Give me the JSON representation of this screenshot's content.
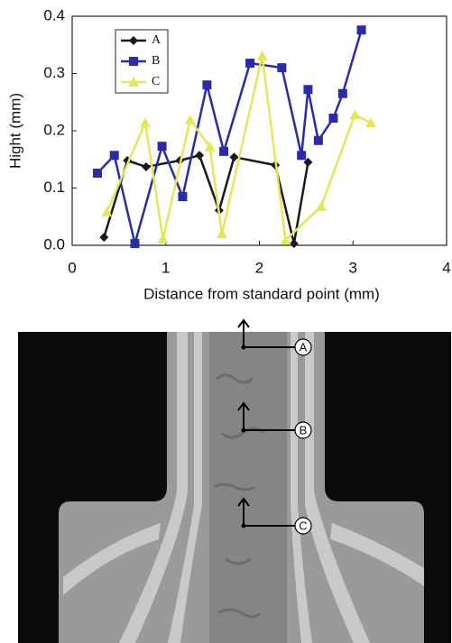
{
  "chart_data": {
    "type": "line",
    "x_label": "Distance from standard point (mm)",
    "y_label": "Hight (mm)",
    "xlim": [
      0,
      4
    ],
    "xticks": [
      0,
      1,
      2,
      3,
      4
    ],
    "ylim": [
      0,
      0.4
    ],
    "yticks": [
      {
        "value": 0,
        "label": "0.0"
      },
      0.1,
      0.2,
      0.3,
      0.4
    ],
    "legend": "upper-left",
    "series": [
      {
        "name": "A",
        "color": "#1a1a1a",
        "marker": "diamond",
        "x": [
          0.34,
          0.59,
          0.79,
          1.15,
          1.36,
          1.57,
          1.73,
          2.17,
          2.37,
          2.52
        ],
        "values": [
          0.014,
          0.148,
          0.137,
          0.148,
          0.157,
          0.061,
          0.154,
          0.14,
          0.003,
          0.145
        ]
      },
      {
        "name": "B",
        "color": "#2b2ba8",
        "marker": "square",
        "x": [
          0.27,
          0.45,
          0.67,
          0.96,
          1.18,
          1.44,
          1.62,
          1.9,
          2.24,
          2.45,
          2.52,
          2.63,
          2.79,
          2.89,
          3.09
        ],
        "values": [
          0.126,
          0.157,
          0.003,
          0.173,
          0.085,
          0.28,
          0.164,
          0.318,
          0.31,
          0.157,
          0.272,
          0.183,
          0.222,
          0.265,
          0.376
        ]
      },
      {
        "name": "C",
        "color": "#e6e65a",
        "marker": "triangle",
        "x": [
          0.37,
          0.78,
          0.97,
          1.26,
          1.47,
          1.6,
          2.03,
          2.28,
          2.66,
          3.02,
          3.19
        ],
        "values": [
          0.058,
          0.214,
          0.011,
          0.219,
          0.172,
          0.02,
          0.331,
          0.009,
          0.068,
          0.228,
          0.214
        ]
      }
    ]
  },
  "photo": {
    "labels": [
      "A",
      "B",
      "C"
    ]
  }
}
